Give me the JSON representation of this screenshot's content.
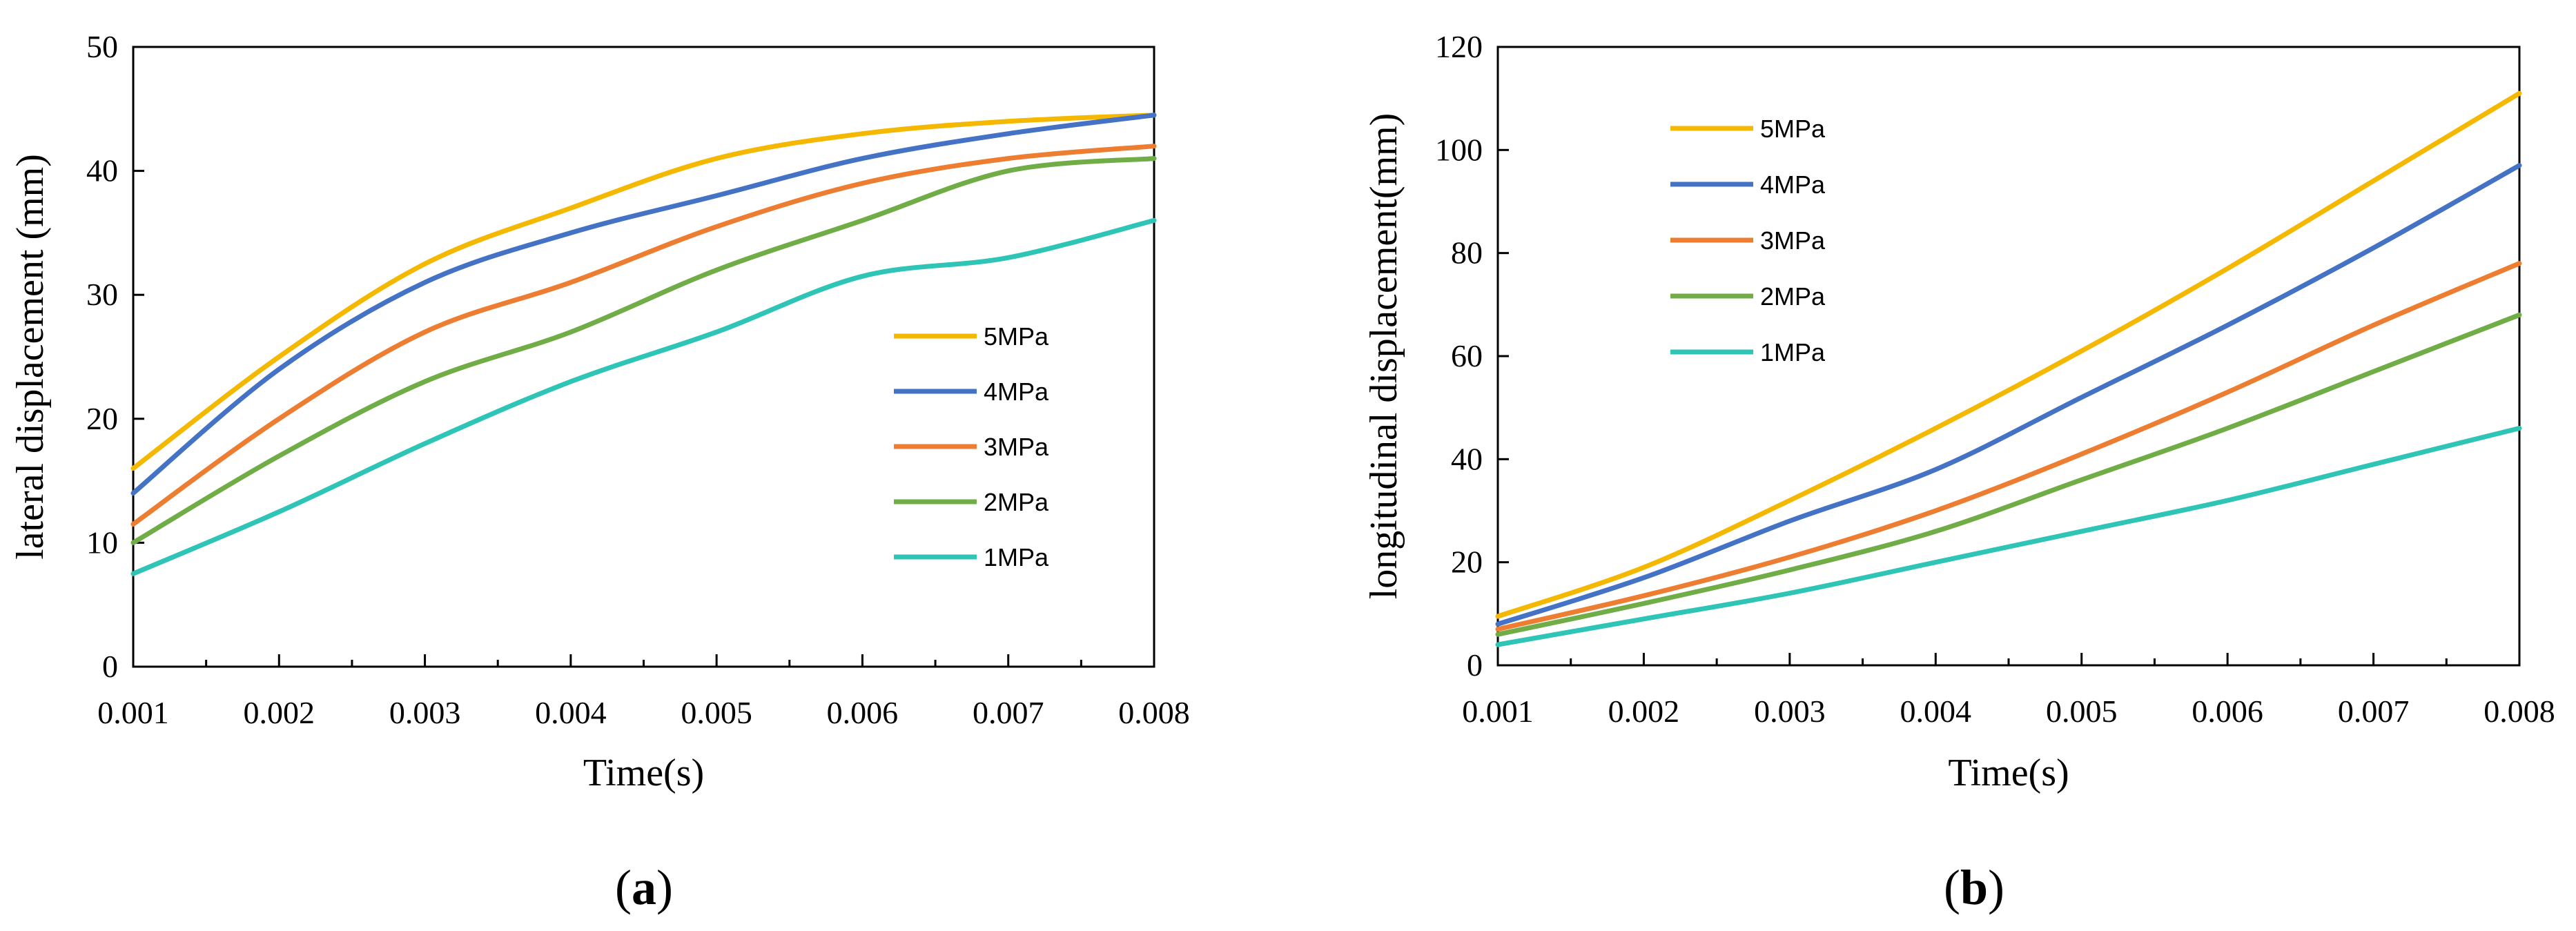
{
  "colors": {
    "5MPa": "#F5B800",
    "4MPa": "#4472C4",
    "3MPa": "#ED7D31",
    "2MPa": "#70AD47",
    "1MPa": "#2EC4B6"
  },
  "chart_data": [
    {
      "type": "line",
      "panel": "a",
      "caption_open": "(",
      "caption_letter": "a",
      "caption_close": ")",
      "xlabel": "Time(s)",
      "ylabel": "lateral displacement (mm)",
      "xlim": [
        0.001,
        0.008
      ],
      "ylim": [
        0,
        50
      ],
      "xticks": [
        "0.001",
        "0.002",
        "0.003",
        "0.004",
        "0.005",
        "0.006",
        "0.007",
        "0.008"
      ],
      "yticks": [
        "0",
        "10",
        "20",
        "30",
        "40",
        "50"
      ],
      "legend_position": "right-center",
      "x": [
        0.001,
        0.002,
        0.003,
        0.004,
        0.005,
        0.006,
        0.007,
        0.008
      ],
      "series": [
        {
          "name": "5MPa",
          "values": [
            16,
            25,
            32.5,
            37,
            41,
            43,
            44,
            44.5
          ]
        },
        {
          "name": "4MPa",
          "values": [
            14,
            24,
            31,
            35,
            38,
            41,
            43,
            44.5
          ]
        },
        {
          "name": "3MPa",
          "values": [
            11.5,
            20,
            27,
            31,
            35.5,
            39,
            41,
            42
          ]
        },
        {
          "name": "2MPa",
          "values": [
            10,
            17,
            23,
            27,
            32,
            36,
            40,
            41
          ]
        },
        {
          "name": "1MPa",
          "values": [
            7.5,
            12.5,
            18,
            23,
            27,
            31.5,
            33,
            36
          ]
        }
      ]
    },
    {
      "type": "line",
      "panel": "b",
      "caption_open": "(",
      "caption_letter": "b",
      "caption_close": ")",
      "xlabel": "Time(s)",
      "ylabel": "longitudinal displacement(mm)",
      "xlim": [
        0.001,
        0.008
      ],
      "ylim": [
        0,
        120
      ],
      "xticks": [
        "0.001",
        "0.002",
        "0.003",
        "0.004",
        "0.005",
        "0.006",
        "0.007",
        "0.008"
      ],
      "yticks": [
        "0",
        "20",
        "40",
        "60",
        "80",
        "100",
        "120"
      ],
      "legend_position": "top-left",
      "x": [
        0.001,
        0.002,
        0.003,
        0.004,
        0.005,
        0.006,
        0.007,
        0.008
      ],
      "series": [
        {
          "name": "5MPa",
          "values": [
            9.5,
            19,
            32,
            46,
            61,
            77,
            94,
            111
          ]
        },
        {
          "name": "4MPa",
          "values": [
            8,
            17,
            28,
            38,
            52,
            66,
            81,
            97
          ]
        },
        {
          "name": "3MPa",
          "values": [
            7,
            13.5,
            21,
            30,
            41,
            53,
            66,
            78
          ]
        },
        {
          "name": "2MPa",
          "values": [
            6,
            12,
            18.5,
            26,
            36,
            46,
            57,
            68
          ]
        },
        {
          "name": "1MPa",
          "values": [
            4,
            9,
            14,
            20,
            26,
            32,
            39,
            46
          ]
        }
      ]
    }
  ]
}
